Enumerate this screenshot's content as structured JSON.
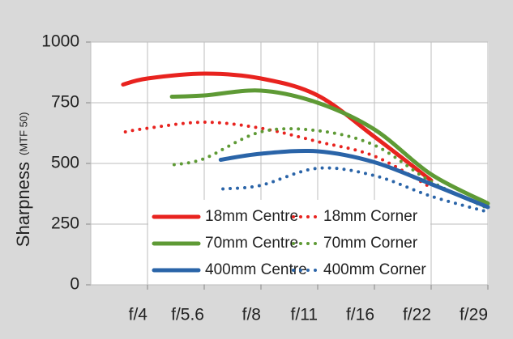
{
  "chart_data": {
    "type": "line",
    "y_label": "Sharpness",
    "y_label_note": "(MTF 50)",
    "xlim": [
      0,
      7
    ],
    "xticks": [
      {
        "value": 1,
        "label": "f/4"
      },
      {
        "value": 2,
        "label": "f/5.6"
      },
      {
        "value": 3,
        "label": "f/8"
      },
      {
        "value": 4,
        "label": "f/11"
      },
      {
        "value": 5,
        "label": "f/16"
      },
      {
        "value": 6,
        "label": "f/22"
      },
      {
        "value": 7,
        "label": "f/29"
      }
    ],
    "ylim": [
      0,
      1000
    ],
    "yticks": [
      0,
      250,
      500,
      750,
      1000
    ],
    "grid": true,
    "legend": "lower center",
    "series": [
      {
        "name": "18mm Centre",
        "color": "#e8231f",
        "style": "solid",
        "x": [
          0.57,
          1,
          2,
          3,
          4,
          5,
          6
        ],
        "values": [
          825,
          850,
          870,
          850,
          780,
          610,
          430
        ]
      },
      {
        "name": "18mm Corner",
        "color": "#e8231f",
        "style": "dotted",
        "x": [
          0.61,
          1,
          2,
          3,
          4,
          5,
          6
        ],
        "values": [
          630,
          645,
          670,
          645,
          590,
          530,
          400
        ]
      },
      {
        "name": "70mm Centre",
        "color": "#5e9a35",
        "style": "solid",
        "x": [
          1.43,
          2,
          3,
          4,
          5,
          6,
          7
        ],
        "values": [
          775,
          780,
          800,
          750,
          640,
          455,
          335
        ]
      },
      {
        "name": "70mm Corner",
        "color": "#5e9a35",
        "style": "dotted",
        "x": [
          1.47,
          2,
          3,
          4,
          5,
          6,
          7
        ],
        "values": [
          495,
          520,
          630,
          635,
          575,
          425,
          315
        ]
      },
      {
        "name": "400mm Centre",
        "color": "#2a64a8",
        "style": "solid",
        "x": [
          2.29,
          3,
          4,
          5,
          6,
          7
        ],
        "values": [
          515,
          540,
          550,
          505,
          415,
          320
        ]
      },
      {
        "name": "400mm Corner",
        "color": "#2a64a8",
        "style": "dotted",
        "x": [
          2.33,
          3,
          4,
          5,
          6,
          7
        ],
        "values": [
          395,
          410,
          480,
          450,
          365,
          300
        ]
      }
    ]
  }
}
